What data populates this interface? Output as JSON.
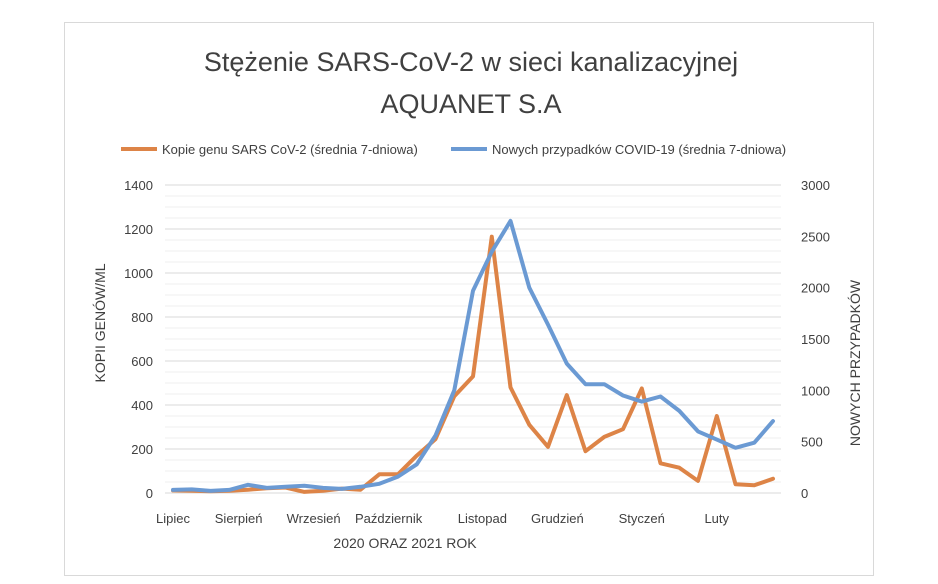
{
  "chart_data": {
    "type": "line",
    "title": "Stężenie SARS-CoV-2 w sieci kanalizacyjnej",
    "subtitle": "AQUANET S.A",
    "xlabel": "2020 ORAZ 2021 ROK",
    "ylabel_left": "KOPII GENÓW/ML",
    "ylabel_right": "NOWYCH PRZYPADKÓW",
    "ylim_left": [
      0,
      1400
    ],
    "ylim_right": [
      0,
      3000
    ],
    "yticks_left": [
      "0",
      "200",
      "400",
      "600",
      "800",
      "1000",
      "1200",
      "1400"
    ],
    "yticks_right": [
      "0",
      "500",
      "1000",
      "1500",
      "2000",
      "2500",
      "3000"
    ],
    "month_labels": [
      {
        "label": "Lipiec",
        "index": 0
      },
      {
        "label": "Sierpień",
        "index": 3.5
      },
      {
        "label": "Wrzesień",
        "index": 7.5
      },
      {
        "label": "Październik",
        "index": 11.5
      },
      {
        "label": "Listopad",
        "index": 16.5
      },
      {
        "label": "Grudzień",
        "index": 20.5
      },
      {
        "label": "Styczeń",
        "index": 25
      },
      {
        "label": "Luty",
        "index": 29
      }
    ],
    "legend_position": "top",
    "grid": true,
    "series": [
      {
        "name": "Kopie genu SARS CoV-2 (średnia 7-dniowa)",
        "axis": "left",
        "color": "#dd8447",
        "values": [
          12,
          10,
          8,
          10,
          15,
          22,
          25,
          5,
          10,
          20,
          15,
          85,
          85,
          170,
          245,
          440,
          530,
          1165,
          480,
          310,
          210,
          445,
          190,
          255,
          290,
          475,
          135,
          115,
          55,
          350,
          40,
          35,
          65
        ]
      },
      {
        "name": "Nowych przypadków COVID-19 (średnia 7-dniowa)",
        "axis": "right",
        "color": "#6b9ad3",
        "values": [
          30,
          35,
          20,
          30,
          80,
          50,
          60,
          70,
          50,
          40,
          60,
          90,
          160,
          280,
          560,
          1000,
          1970,
          2350,
          2650,
          2000,
          1640,
          1260,
          1060,
          1060,
          950,
          890,
          940,
          800,
          600,
          520,
          440,
          490,
          700
        ]
      }
    ]
  }
}
